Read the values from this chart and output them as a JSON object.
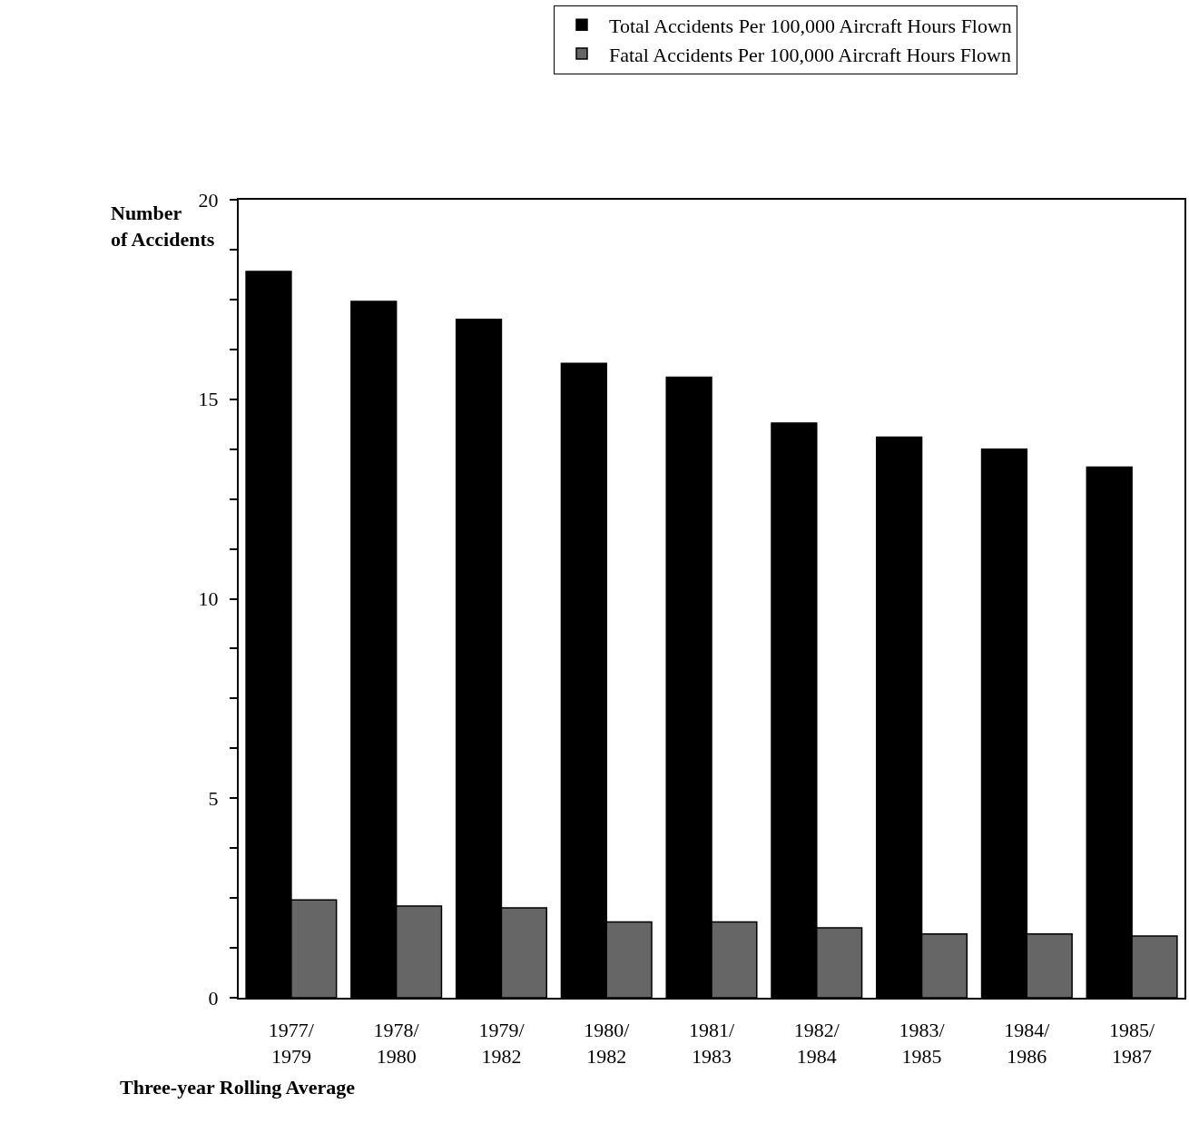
{
  "chart_data": {
    "type": "bar",
    "xlabel": "Three-year Rolling Average",
    "ylabel": "Number of Accidents",
    "categories": [
      "1977/1979",
      "1978/1980",
      "1979/1982",
      "1980/1982",
      "1981/1983",
      "1982/1984",
      "1983/1985",
      "1984/1986",
      "1985/1987"
    ],
    "series": [
      {
        "name": "Total Accidents Per 100,000 Aircraft Hours Flown",
        "color": "#000000",
        "values": [
          18.2,
          17.45,
          17.0,
          15.9,
          15.55,
          14.4,
          14.05,
          13.75,
          13.3
        ]
      },
      {
        "name": "Fatal Accidents Per 100,000 Aircraft Hours Flown",
        "color": "#666666",
        "values": [
          2.45,
          2.3,
          2.25,
          1.9,
          1.9,
          1.75,
          1.6,
          1.6,
          1.55
        ]
      }
    ],
    "ylim": [
      0,
      20
    ],
    "yticks": [
      0,
      {
        "value": 1.25,
        "label": null
      },
      {
        "value": 2.5,
        "label": null
      },
      {
        "value": 3.75,
        "label": null
      },
      5,
      {
        "value": 6.25,
        "label": null
      },
      {
        "value": 7.5,
        "label": null
      },
      {
        "value": 8.75,
        "label": null
      },
      10,
      {
        "value": 11.25,
        "label": null
      },
      {
        "value": 12.5,
        "label": null
      },
      {
        "value": 13.75,
        "label": null
      },
      15,
      {
        "value": 16.25,
        "label": null
      },
      {
        "value": 17.5,
        "label": null
      },
      {
        "value": 18.75,
        "label": null
      },
      20
    ],
    "grid": false,
    "legend": "top right"
  }
}
